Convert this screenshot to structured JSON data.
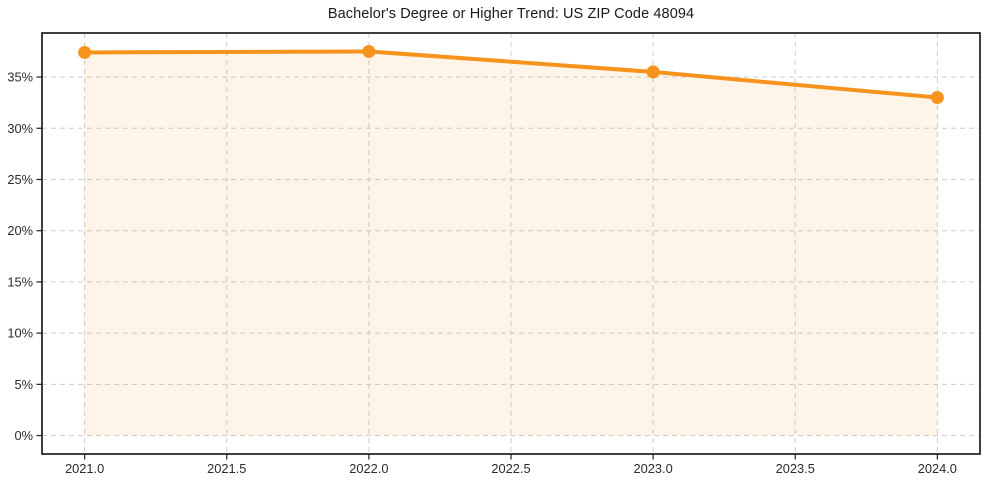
{
  "chart_data": {
    "type": "area",
    "title": "Bachelor's Degree or Higher Trend: US ZIP Code 48094",
    "x": [
      2021,
      2022,
      2023,
      2024
    ],
    "values": [
      37.4,
      37.5,
      35.5,
      33.0
    ],
    "x_tick_values": [
      2021.0,
      2021.5,
      2022.0,
      2022.5,
      2023.0,
      2023.5,
      2024.0
    ],
    "x_tick_labels": [
      "2021.0",
      "2021.5",
      "2022.0",
      "2022.5",
      "2023.0",
      "2023.5",
      "2024.0"
    ],
    "y_tick_values": [
      0,
      5,
      10,
      15,
      20,
      25,
      30,
      35
    ],
    "y_tick_labels": [
      "0%",
      "5%",
      "10%",
      "15%",
      "20%",
      "25%",
      "30%",
      "35%"
    ],
    "xlim": [
      2020.85,
      2024.15
    ],
    "ylim": [
      -1.8,
      39.3
    ],
    "fill_baseline": 0,
    "grid": true,
    "legend": "none",
    "xlabel": "",
    "ylabel": "",
    "colors": {
      "line": "#f6931d",
      "marker": "#f6931d",
      "area_fill": "rgba(246,147,29,0.10)",
      "grid": "#cdcdcd",
      "spine": "#1f1f1f",
      "tick_text": "#2b2b2b",
      "background": "#ffffff"
    }
  }
}
